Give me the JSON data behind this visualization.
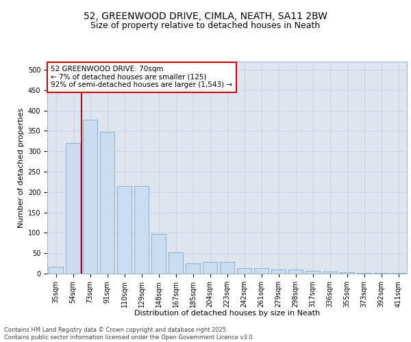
{
  "title_line1": "52, GREENWOOD DRIVE, CIMLA, NEATH, SA11 2BW",
  "title_line2": "Size of property relative to detached houses in Neath",
  "xlabel": "Distribution of detached houses by size in Neath",
  "ylabel": "Number of detached properties",
  "categories": [
    "35sqm",
    "54sqm",
    "73sqm",
    "91sqm",
    "110sqm",
    "129sqm",
    "148sqm",
    "167sqm",
    "185sqm",
    "204sqm",
    "223sqm",
    "242sqm",
    "261sqm",
    "279sqm",
    "298sqm",
    "317sqm",
    "336sqm",
    "355sqm",
    "373sqm",
    "392sqm",
    "411sqm"
  ],
  "values": [
    16,
    320,
    378,
    348,
    215,
    215,
    98,
    52,
    25,
    28,
    28,
    13,
    13,
    10,
    10,
    7,
    5,
    3,
    1,
    1,
    1
  ],
  "bar_color": "#ccdcef",
  "bar_edge_color": "#8ab0d4",
  "vline_color": "#cc0000",
  "vline_x": 1.5,
  "annotation_box_text": "52 GREENWOOD DRIVE: 70sqm\n← 7% of detached houses are smaller (125)\n92% of semi-detached houses are larger (1,543) →",
  "ylim": [
    0,
    520
  ],
  "yticks": [
    0,
    50,
    100,
    150,
    200,
    250,
    300,
    350,
    400,
    450,
    500
  ],
  "grid_color": "#c8d4e4",
  "bg_color": "#dde5f0",
  "footer_text": "Contains HM Land Registry data © Crown copyright and database right 2025.\nContains public sector information licensed under the Open Government Licence v3.0.",
  "title_fontsize": 10,
  "subtitle_fontsize": 9,
  "axis_label_fontsize": 8,
  "tick_fontsize": 7,
  "annotation_fontsize": 7.5,
  "footer_fontsize": 6
}
